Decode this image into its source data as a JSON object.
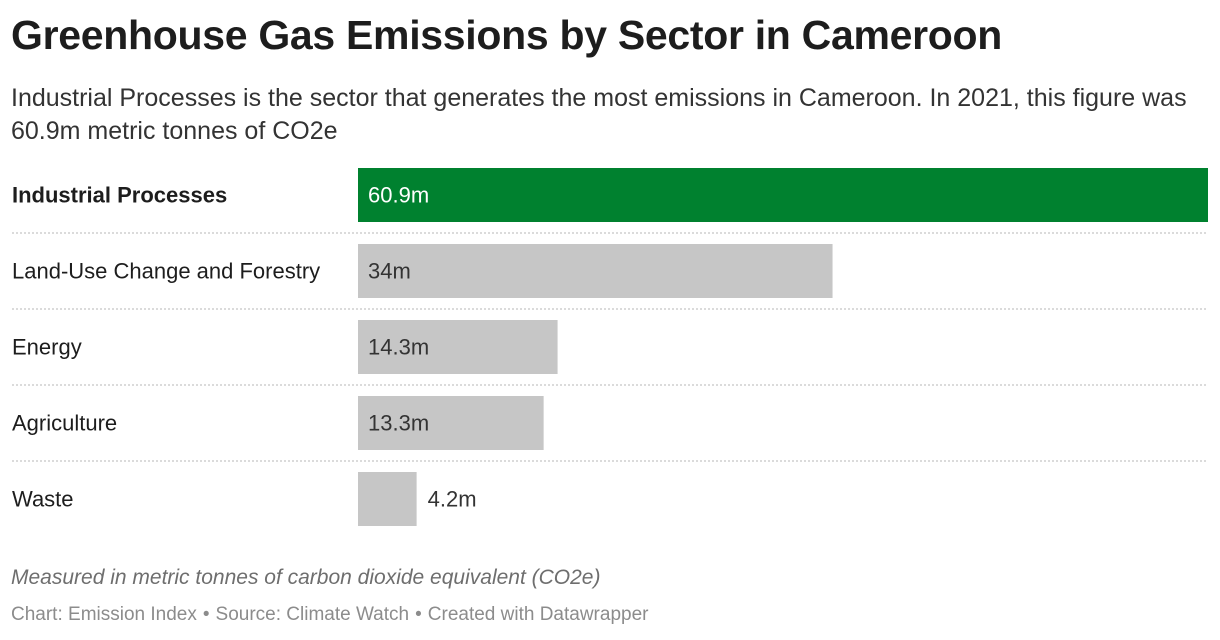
{
  "header": {
    "title": "Greenhouse Gas Emissions by Sector in Cameroon",
    "subtitle": "Industrial Processes is the sector that generates the most emissions in Cameroon. In 2021, this figure was 60.9m metric tonnes of CO2e"
  },
  "chart_data": {
    "type": "bar",
    "orientation": "horizontal",
    "categories": [
      "Industrial Processes",
      "Land-Use Change and Forestry",
      "Energy",
      "Agriculture",
      "Waste"
    ],
    "values": [
      60.9,
      34,
      14.3,
      13.3,
      4.2
    ],
    "value_labels": [
      "60.9m",
      "34m",
      "14.3m",
      "13.3m",
      "4.2m"
    ],
    "highlight_category": "Industrial Processes",
    "xlim": [
      0,
      60.9
    ],
    "grid": false,
    "colors": {
      "highlight": "#00812f",
      "default": "#c6c6c6"
    }
  },
  "footer": {
    "notes": "Measured in metric tonnes of carbon dioxide equivalent (CO2e)",
    "chart_credit": "Chart: Emission Index",
    "source": "Source: Climate Watch",
    "created_with": "Created with Datawrapper",
    "separator": "•"
  }
}
